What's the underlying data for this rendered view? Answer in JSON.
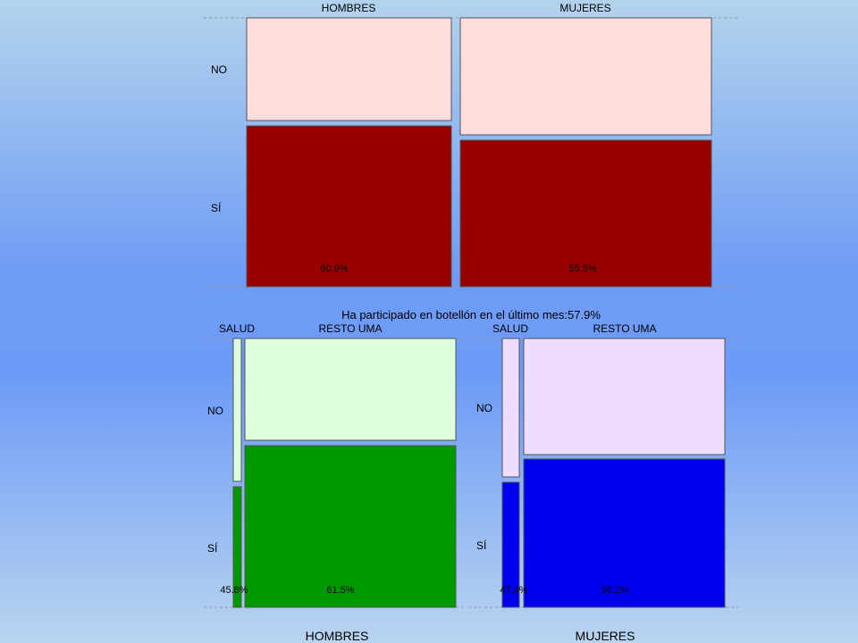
{
  "chart_data": [
    {
      "type": "mosaic",
      "columns": [
        "HOMBRES",
        "MUJERES"
      ],
      "rows": [
        "NO",
        "SÍ"
      ],
      "column_share": [
        0.45,
        0.55
      ],
      "si_share": [
        0.609,
        0.555
      ],
      "si_labels": [
        "60.9%",
        "55.5%"
      ],
      "colors": {
        "no": "#ffdddd",
        "si": "#990000"
      }
    },
    {
      "type": "mosaic",
      "title": "Ha participado en botellón en el último mes:57.9%",
      "columns": [
        "SALUD",
        "RESTO UMA"
      ],
      "rows": [
        "NO",
        "SÍ"
      ],
      "group_label": "HOMBRES",
      "column_share": [
        0.04,
        0.96
      ],
      "si_share": [
        0.458,
        0.615
      ],
      "si_labels": [
        "45.8%",
        "61.5%"
      ],
      "colors": {
        "no": "#ddffdd",
        "si": "#009900"
      }
    },
    {
      "type": "mosaic",
      "columns": [
        "SALUD",
        "RESTO UMA"
      ],
      "rows": [
        "NO",
        "SÍ"
      ],
      "group_label": "MUJERES",
      "column_share": [
        0.08,
        0.92
      ],
      "si_share": [
        0.479,
        0.562
      ],
      "si_labels": [
        "47.9%",
        "56.2%"
      ],
      "colors": {
        "no": "#eeddff",
        "si": "#0000ee"
      }
    }
  ]
}
